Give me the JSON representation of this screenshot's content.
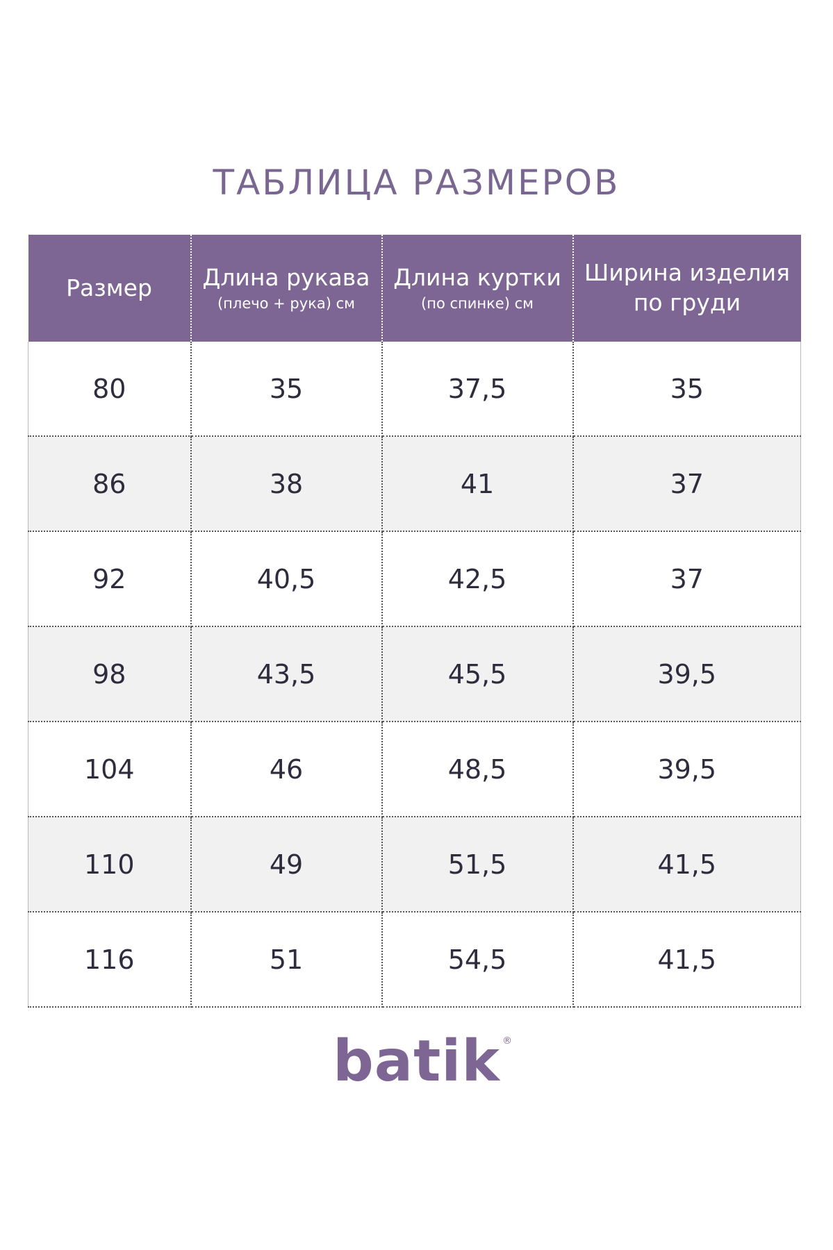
{
  "title": "ТАБЛИЦА  РАЗМЕРОВ",
  "table": {
    "headers": [
      {
        "main": "Размер",
        "sub": ""
      },
      {
        "main": "Длина рукава",
        "sub": "(плечо + рука) см"
      },
      {
        "main": "Длина куртки",
        "sub": "(по спинке) см"
      },
      {
        "main": "Ширина изделия по груди",
        "sub": ""
      }
    ],
    "rows": [
      [
        "80",
        "35",
        "37,5",
        "35"
      ],
      [
        "86",
        "38",
        "41",
        "37"
      ],
      [
        "92",
        "40,5",
        "42,5",
        "37"
      ],
      [
        "98",
        "43,5",
        "45,5",
        "39,5"
      ],
      [
        "104",
        "46",
        "48,5",
        "39,5"
      ],
      [
        "110",
        "49",
        "51,5",
        "41,5"
      ],
      [
        "116",
        "51",
        "54,5",
        "41,5"
      ]
    ]
  },
  "logo": {
    "text": "batik",
    "registered": "®"
  },
  "colors": {
    "accent": "#7e6694",
    "title": "#7a6791",
    "alt_row": "#f1f1f1"
  }
}
